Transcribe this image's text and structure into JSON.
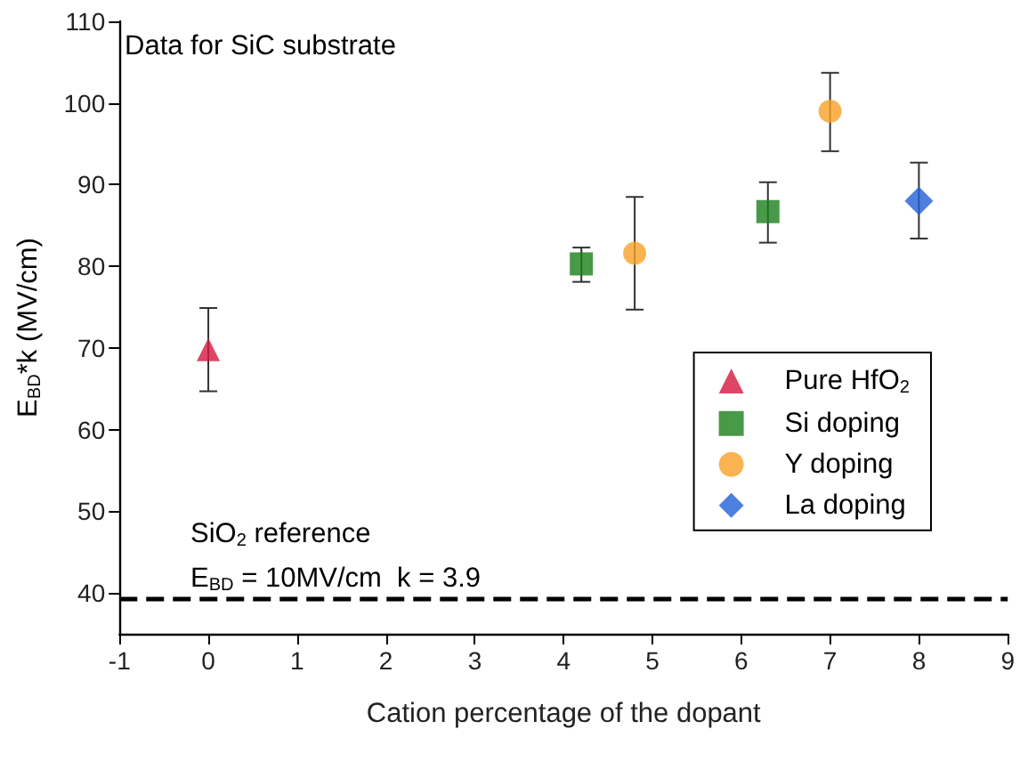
{
  "chart_data": {
    "type": "scatter",
    "xlabel": "Cation percentage of the dopant",
    "ylabel": "E$_{BD}$*k (MV/cm)",
    "xlim": [
      -1,
      9
    ],
    "xticks": [
      -1,
      0,
      1,
      2,
      3,
      4,
      5,
      6,
      7,
      8,
      9
    ],
    "ylim": [
      35,
      110
    ],
    "yticks": [
      40,
      50,
      60,
      70,
      80,
      90,
      100,
      110
    ],
    "grid": false,
    "legend": "right",
    "series": [
      {
        "name": "Pure HfO$_{2}$",
        "color": "#d6173f",
        "marker": "triangle",
        "x": [
          0
        ],
        "values": [
          69.8
        ],
        "errors": [
          [
            64.7,
            74.9
          ]
        ]
      },
      {
        "name": "Si doping",
        "color": "#1a7f1a",
        "marker": "square",
        "x": [
          4.2,
          6.3
        ],
        "values": [
          80.3,
          86.7
        ],
        "errors": [
          [
            78.1,
            82.3
          ],
          [
            82.9,
            90.3
          ]
        ]
      },
      {
        "name": "Y doping",
        "color": "#f9a025",
        "marker": "circle",
        "x": [
          4.8,
          7
        ],
        "values": [
          81.6,
          99.0
        ],
        "errors": [
          [
            74.7,
            88.5
          ],
          [
            94.1,
            103.7
          ]
        ]
      },
      {
        "name": "La doping",
        "color": "#1f5fd6",
        "marker": "diamond",
        "x": [
          8
        ],
        "values": [
          88.0
        ],
        "errors": [
          [
            83.4,
            92.7
          ]
        ]
      }
    ],
    "ref_lines": [
      {
        "axis": "y",
        "value": 39.2,
        "color": "#000000",
        "line_style": "dashed"
      }
    ],
    "annotations": [
      "Data for SiC substrate",
      "SiO$_{2}$ reference",
      "E$_{BD}$ = 10MV/cm  k = 3.9"
    ]
  }
}
